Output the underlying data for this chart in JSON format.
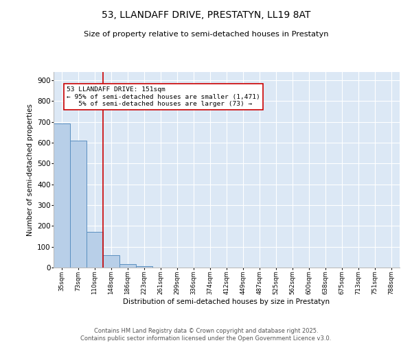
{
  "title": "53, LLANDAFF DRIVE, PRESTATYN, LL19 8AT",
  "subtitle": "Size of property relative to semi-detached houses in Prestatyn",
  "xlabel": "Distribution of semi-detached houses by size in Prestatyn",
  "ylabel": "Number of semi-detached properties",
  "categories": [
    "35sqm",
    "73sqm",
    "110sqm",
    "148sqm",
    "186sqm",
    "223sqm",
    "261sqm",
    "299sqm",
    "336sqm",
    "374sqm",
    "412sqm",
    "449sqm",
    "487sqm",
    "525sqm",
    "562sqm",
    "600sqm",
    "638sqm",
    "675sqm",
    "713sqm",
    "751sqm",
    "788sqm"
  ],
  "values": [
    693,
    610,
    170,
    60,
    15,
    5,
    1,
    0,
    0,
    0,
    0,
    0,
    0,
    0,
    0,
    0,
    0,
    0,
    0,
    0,
    0
  ],
  "bar_color": "#b8cfe8",
  "bar_edge_color": "#5a8fc0",
  "background_color": "#dce8f5",
  "property_line_color": "#cc0000",
  "annotation_line1": "53 LLANDAFF DRIVE: 151sqm",
  "annotation_line2": "← 95% of semi-detached houses are smaller (1,471)",
  "annotation_line3": "   5% of semi-detached houses are larger (73) →",
  "annotation_box_color": "#cc0000",
  "ylim": [
    0,
    940
  ],
  "yticks": [
    0,
    100,
    200,
    300,
    400,
    500,
    600,
    700,
    800,
    900
  ],
  "footer_line1": "Contains HM Land Registry data © Crown copyright and database right 2025.",
  "footer_line2": "Contains public sector information licensed under the Open Government Licence v3.0."
}
